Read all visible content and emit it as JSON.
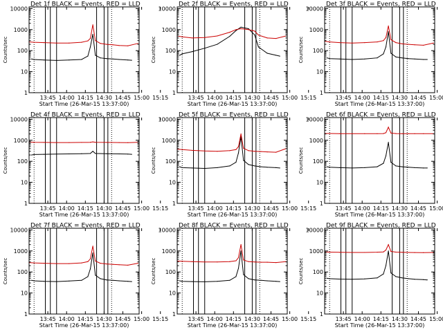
{
  "figure": {
    "colors": {
      "events": "#000000",
      "lld": "#cc0000",
      "axes": "#000000",
      "background": "#ffffff"
    },
    "axis_common": {
      "xlabel": "Start Time (26-Mar-15 13:37:00)",
      "ylabel": "Counts/sec",
      "x_ticks": [
        "13:45",
        "14:00",
        "14:15",
        "14:30",
        "14:45",
        "15:00",
        "15:15"
      ],
      "y_ticks": [
        "1",
        "10",
        "100",
        "1000",
        "10000"
      ],
      "xlim_minutes": [
        13,
        101
      ],
      "ylim": [
        1,
        12000
      ],
      "yscale": "log"
    }
  },
  "chart_data": [
    {
      "type": "line",
      "title": "Det 1f BLACK = Events, RED = LLD",
      "xlabel": "Start Time (26-Mar-15 13:37:00)",
      "ylabel": "Counts/sec",
      "x_ticks": [
        "13:45",
        "14:00",
        "14:15",
        "14:30",
        "14:45",
        "15:00",
        "15:15"
      ],
      "y_ticks": [
        "1",
        "10",
        "100",
        "1000",
        "10000"
      ],
      "yscale": "log",
      "xlim_minutes": [
        13,
        101
      ],
      "ylim": [
        1,
        12000
      ],
      "dotted_vlines_minutes": [
        17,
        79
      ],
      "solid_vlines_minutes": [
        26,
        30,
        35,
        67,
        73,
        76
      ],
      "series": [
        {
          "name": "Events",
          "color": "#000000",
          "x": [
            15,
            17,
            25,
            35,
            45,
            55,
            60,
            62,
            64,
            66,
            70,
            75,
            80,
            85,
            92,
            95
          ],
          "y": [
            40,
            38,
            36,
            34,
            36,
            38,
            55,
            150,
            600,
            60,
            45,
            42,
            40,
            38,
            36,
            35
          ]
        },
        {
          "name": "LLD",
          "color": "#cc0000",
          "x": [
            13,
            17,
            25,
            35,
            45,
            55,
            60,
            62,
            64,
            66,
            70,
            75,
            80,
            85,
            92,
            100
          ],
          "y": [
            260,
            250,
            240,
            230,
            230,
            250,
            290,
            380,
            1700,
            300,
            220,
            200,
            190,
            175,
            170,
            220
          ]
        }
      ]
    },
    {
      "type": "line",
      "title": "Det 2f BLACK = Events, RED = LLD",
      "xlabel": "Start Time (26-Mar-15 13:37:00)",
      "ylabel": "Counts/sec",
      "x_ticks": [
        "13:45",
        "14:00",
        "14:15",
        "14:30",
        "14:45",
        "15:00",
        "15:15"
      ],
      "y_ticks": [
        "1",
        "10",
        "100",
        "1000",
        "10000"
      ],
      "yscale": "log",
      "xlim_minutes": [
        13,
        101
      ],
      "ylim": [
        1,
        12000
      ],
      "dotted_vlines_minutes": [
        17,
        79
      ],
      "solid_vlines_minutes": [
        26,
        30,
        35,
        67,
        73,
        76
      ],
      "series": [
        {
          "name": "Events",
          "color": "#000000",
          "x": [
            15,
            17,
            25,
            35,
            45,
            55,
            60,
            64,
            70,
            75,
            78,
            85,
            92,
            95
          ],
          "y": [
            60,
            70,
            90,
            130,
            200,
            480,
            900,
            1300,
            1100,
            550,
            150,
            75,
            60,
            55
          ]
        },
        {
          "name": "LLD",
          "color": "#cc0000",
          "x": [
            13,
            17,
            25,
            35,
            45,
            55,
            60,
            64,
            70,
            75,
            78,
            85,
            92,
            100
          ],
          "y": [
            500,
            450,
            400,
            420,
            500,
            750,
            1000,
            1100,
            1000,
            850,
            550,
            400,
            380,
            500
          ]
        }
      ]
    },
    {
      "type": "line",
      "title": "Det 3f BLACK = Events, RED = LLD",
      "xlabel": "Start Time (26-Mar-15 13:37:00)",
      "ylabel": "Counts/sec",
      "x_ticks": [
        "13:45",
        "14:00",
        "14:15",
        "14:30",
        "14:45",
        "15:00",
        "15:15"
      ],
      "y_ticks": [
        "1",
        "10",
        "100",
        "1000",
        "10000"
      ],
      "yscale": "log",
      "xlim_minutes": [
        13,
        101
      ],
      "ylim": [
        1,
        12000
      ],
      "dotted_vlines_minutes": [
        17,
        79
      ],
      "solid_vlines_minutes": [
        26,
        30,
        35,
        67,
        73,
        76
      ],
      "series": [
        {
          "name": "Events",
          "color": "#000000",
          "x": [
            15,
            17,
            25,
            35,
            45,
            55,
            60,
            62,
            64,
            66,
            70,
            75,
            80,
            85,
            92,
            95
          ],
          "y": [
            45,
            42,
            40,
            38,
            40,
            45,
            70,
            150,
            800,
            75,
            50,
            45,
            42,
            40,
            38,
            38
          ]
        },
        {
          "name": "LLD",
          "color": "#cc0000",
          "x": [
            13,
            17,
            25,
            35,
            45,
            55,
            60,
            62,
            64,
            66,
            70,
            75,
            80,
            85,
            92,
            100
          ],
          "y": [
            280,
            260,
            240,
            230,
            240,
            260,
            300,
            420,
            1500,
            330,
            240,
            210,
            200,
            190,
            180,
            230
          ]
        }
      ]
    },
    {
      "type": "line",
      "title": "Det 4f BLACK = Events, RED = LLD",
      "xlabel": "Start Time (26-Mar-15 13:37:00)",
      "ylabel": "Counts/sec",
      "x_ticks": [
        "13:45",
        "14:00",
        "14:15",
        "14:30",
        "14:45",
        "15:00",
        "15:15"
      ],
      "y_ticks": [
        "1",
        "10",
        "100",
        "1000",
        "10000"
      ],
      "yscale": "log",
      "xlim_minutes": [
        13,
        101
      ],
      "ylim": [
        1,
        12000
      ],
      "dotted_vlines_minutes": [
        17,
        79
      ],
      "solid_vlines_minutes": [
        26,
        30,
        35,
        67,
        73,
        76
      ],
      "series": [
        {
          "name": "Events",
          "color": "#000000",
          "x": [
            15,
            17,
            25,
            35,
            45,
            55,
            62,
            64,
            66,
            75,
            85,
            92,
            95
          ],
          "y": [
            200,
            210,
            215,
            220,
            225,
            230,
            235,
            300,
            235,
            230,
            225,
            220,
            215
          ]
        },
        {
          "name": "LLD",
          "color": "#cc0000",
          "x": [
            13,
            17,
            25,
            35,
            45,
            55,
            62,
            64,
            66,
            75,
            85,
            92,
            100
          ],
          "y": [
            820,
            800,
            790,
            780,
            780,
            790,
            800,
            840,
            800,
            790,
            780,
            770,
            800
          ]
        }
      ]
    },
    {
      "type": "line",
      "title": "Det 5f BLACK = Events, RED = LLD",
      "xlabel": "Start Time (26-Mar-15 13:37:00)",
      "ylabel": "Counts/sec",
      "x_ticks": [
        "13:45",
        "14:00",
        "14:15",
        "14:30",
        "14:45",
        "15:00",
        "15:15"
      ],
      "y_ticks": [
        "1",
        "10",
        "100",
        "1000",
        "10000"
      ],
      "yscale": "log",
      "xlim_minutes": [
        13,
        101
      ],
      "ylim": [
        1,
        12000
      ],
      "dotted_vlines_minutes": [
        17,
        79
      ],
      "solid_vlines_minutes": [
        26,
        30,
        35,
        67,
        73,
        76
      ],
      "series": [
        {
          "name": "Events",
          "color": "#000000",
          "x": [
            15,
            17,
            25,
            35,
            45,
            55,
            60,
            62,
            64,
            66,
            70,
            75,
            80,
            85,
            92,
            95
          ],
          "y": [
            55,
            50,
            48,
            46,
            50,
            60,
            90,
            250,
            1500,
            110,
            70,
            60,
            55,
            52,
            50,
            48
          ]
        },
        {
          "name": "LLD",
          "color": "#cc0000",
          "x": [
            13,
            17,
            25,
            35,
            45,
            55,
            60,
            62,
            64,
            66,
            70,
            75,
            80,
            85,
            92,
            100
          ],
          "y": [
            380,
            360,
            330,
            310,
            300,
            320,
            360,
            500,
            2000,
            420,
            320,
            300,
            290,
            280,
            270,
            400
          ]
        }
      ]
    },
    {
      "type": "line",
      "title": "Det 6f BLACK = Events, RED = LLD",
      "xlabel": "Start Time (26-Mar-15 13:37:00)",
      "ylabel": "Counts/sec",
      "x_ticks": [
        "13:45",
        "14:00",
        "14:15",
        "14:30",
        "14:45",
        "15:00",
        "15:15"
      ],
      "y_ticks": [
        "1",
        "10",
        "100",
        "1000",
        "10000"
      ],
      "yscale": "log",
      "xlim_minutes": [
        13,
        101
      ],
      "ylim": [
        1,
        12000
      ],
      "dotted_vlines_minutes": [
        17,
        79
      ],
      "solid_vlines_minutes": [
        26,
        30,
        35,
        67,
        73,
        76
      ],
      "series": [
        {
          "name": "Events",
          "color": "#000000",
          "x": [
            15,
            17,
            25,
            35,
            45,
            55,
            60,
            62,
            64,
            66,
            70,
            75,
            80,
            85,
            92,
            95
          ],
          "y": [
            55,
            52,
            50,
            48,
            50,
            55,
            80,
            180,
            800,
            90,
            60,
            55,
            52,
            50,
            48,
            48
          ]
        },
        {
          "name": "LLD",
          "color": "#cc0000",
          "x": [
            13,
            17,
            25,
            35,
            45,
            55,
            60,
            62,
            64,
            66,
            70,
            75,
            80,
            85,
            92,
            100
          ],
          "y": [
            2100,
            2100,
            2050,
            2050,
            2050,
            2050,
            2080,
            2300,
            4200,
            2200,
            2080,
            2050,
            2050,
            2050,
            2050,
            2050
          ]
        }
      ]
    },
    {
      "type": "line",
      "title": "Det 7f BLACK = Events, RED = LLD",
      "xlabel": "Start Time (26-Mar-15 13:37:00)",
      "ylabel": "Counts/sec",
      "x_ticks": [
        "13:45",
        "14:00",
        "14:15",
        "14:30",
        "14:45",
        "15:00",
        "15:15"
      ],
      "y_ticks": [
        "1",
        "10",
        "100",
        "1000",
        "10000"
      ],
      "yscale": "log",
      "xlim_minutes": [
        13,
        101
      ],
      "ylim": [
        1,
        12000
      ],
      "dotted_vlines_minutes": [
        17,
        79
      ],
      "solid_vlines_minutes": [
        26,
        30,
        35,
        67,
        73,
        76
      ],
      "series": [
        {
          "name": "Events",
          "color": "#000000",
          "x": [
            15,
            17,
            25,
            35,
            45,
            55,
            60,
            62,
            64,
            66,
            70,
            75,
            80,
            85,
            92,
            95
          ],
          "y": [
            40,
            38,
            36,
            35,
            37,
            40,
            60,
            140,
            800,
            70,
            48,
            42,
            40,
            38,
            36,
            35
          ]
        },
        {
          "name": "LLD",
          "color": "#cc0000",
          "x": [
            13,
            17,
            25,
            35,
            45,
            55,
            60,
            62,
            64,
            66,
            70,
            75,
            80,
            85,
            92,
            100
          ],
          "y": [
            280,
            270,
            260,
            250,
            250,
            270,
            310,
            420,
            1700,
            330,
            260,
            240,
            230,
            220,
            210,
            260
          ]
        }
      ]
    },
    {
      "type": "line",
      "title": "Det 8f BLACK = Events, RED = LLD",
      "xlabel": "Start Time (26-Mar-15 13:37:00)",
      "ylabel": "Counts/sec",
      "x_ticks": [
        "13:45",
        "14:00",
        "14:15",
        "14:30",
        "14:45",
        "15:00",
        "15:15"
      ],
      "y_ticks": [
        "1",
        "10",
        "100",
        "1000",
        "10000"
      ],
      "yscale": "log",
      "xlim_minutes": [
        13,
        101
      ],
      "ylim": [
        1,
        12000
      ],
      "dotted_vlines_minutes": [
        17,
        79
      ],
      "solid_vlines_minutes": [
        26,
        30,
        35,
        67,
        73,
        76
      ],
      "series": [
        {
          "name": "Events",
          "color": "#000000",
          "x": [
            15,
            17,
            25,
            35,
            45,
            55,
            60,
            62,
            64,
            66,
            70,
            75,
            80,
            85,
            92,
            95
          ],
          "y": [
            38,
            36,
            35,
            34,
            36,
            40,
            60,
            150,
            1000,
            75,
            48,
            42,
            40,
            38,
            36,
            35
          ]
        },
        {
          "name": "LLD",
          "color": "#cc0000",
          "x": [
            13,
            17,
            25,
            35,
            45,
            55,
            60,
            62,
            64,
            66,
            70,
            75,
            80,
            85,
            92,
            100
          ],
          "y": [
            330,
            320,
            310,
            300,
            300,
            310,
            340,
            480,
            2000,
            370,
            310,
            300,
            290,
            290,
            280,
            310
          ]
        }
      ]
    },
    {
      "type": "line",
      "title": "Det 9f BLACK = Events, RED = LLD",
      "xlabel": "Start Time (26-Mar-15 13:37:00)",
      "ylabel": "Counts/sec",
      "x_ticks": [
        "13:45",
        "14:00",
        "14:15",
        "14:30",
        "14:45",
        "15:00",
        "15:15"
      ],
      "y_ticks": [
        "1",
        "10",
        "100",
        "1000",
        "10000"
      ],
      "yscale": "log",
      "xlim_minutes": [
        13,
        101
      ],
      "ylim": [
        1,
        12000
      ],
      "dotted_vlines_minutes": [
        17,
        79
      ],
      "solid_vlines_minutes": [
        26,
        30,
        35,
        67,
        73,
        76
      ],
      "series": [
        {
          "name": "Events",
          "color": "#000000",
          "x": [
            15,
            17,
            25,
            35,
            45,
            55,
            60,
            62,
            64,
            66,
            70,
            75,
            80,
            85,
            92,
            95
          ],
          "y": [
            50,
            48,
            46,
            45,
            47,
            52,
            80,
            200,
            1000,
            90,
            60,
            52,
            48,
            45,
            43,
            42
          ]
        },
        {
          "name": "LLD",
          "color": "#cc0000",
          "x": [
            13,
            17,
            25,
            35,
            45,
            55,
            60,
            62,
            64,
            66,
            70,
            75,
            80,
            85,
            92,
            100
          ],
          "y": [
            900,
            880,
            860,
            850,
            850,
            870,
            900,
            1100,
            2000,
            950,
            880,
            860,
            850,
            840,
            830,
            850
          ]
        }
      ]
    }
  ]
}
